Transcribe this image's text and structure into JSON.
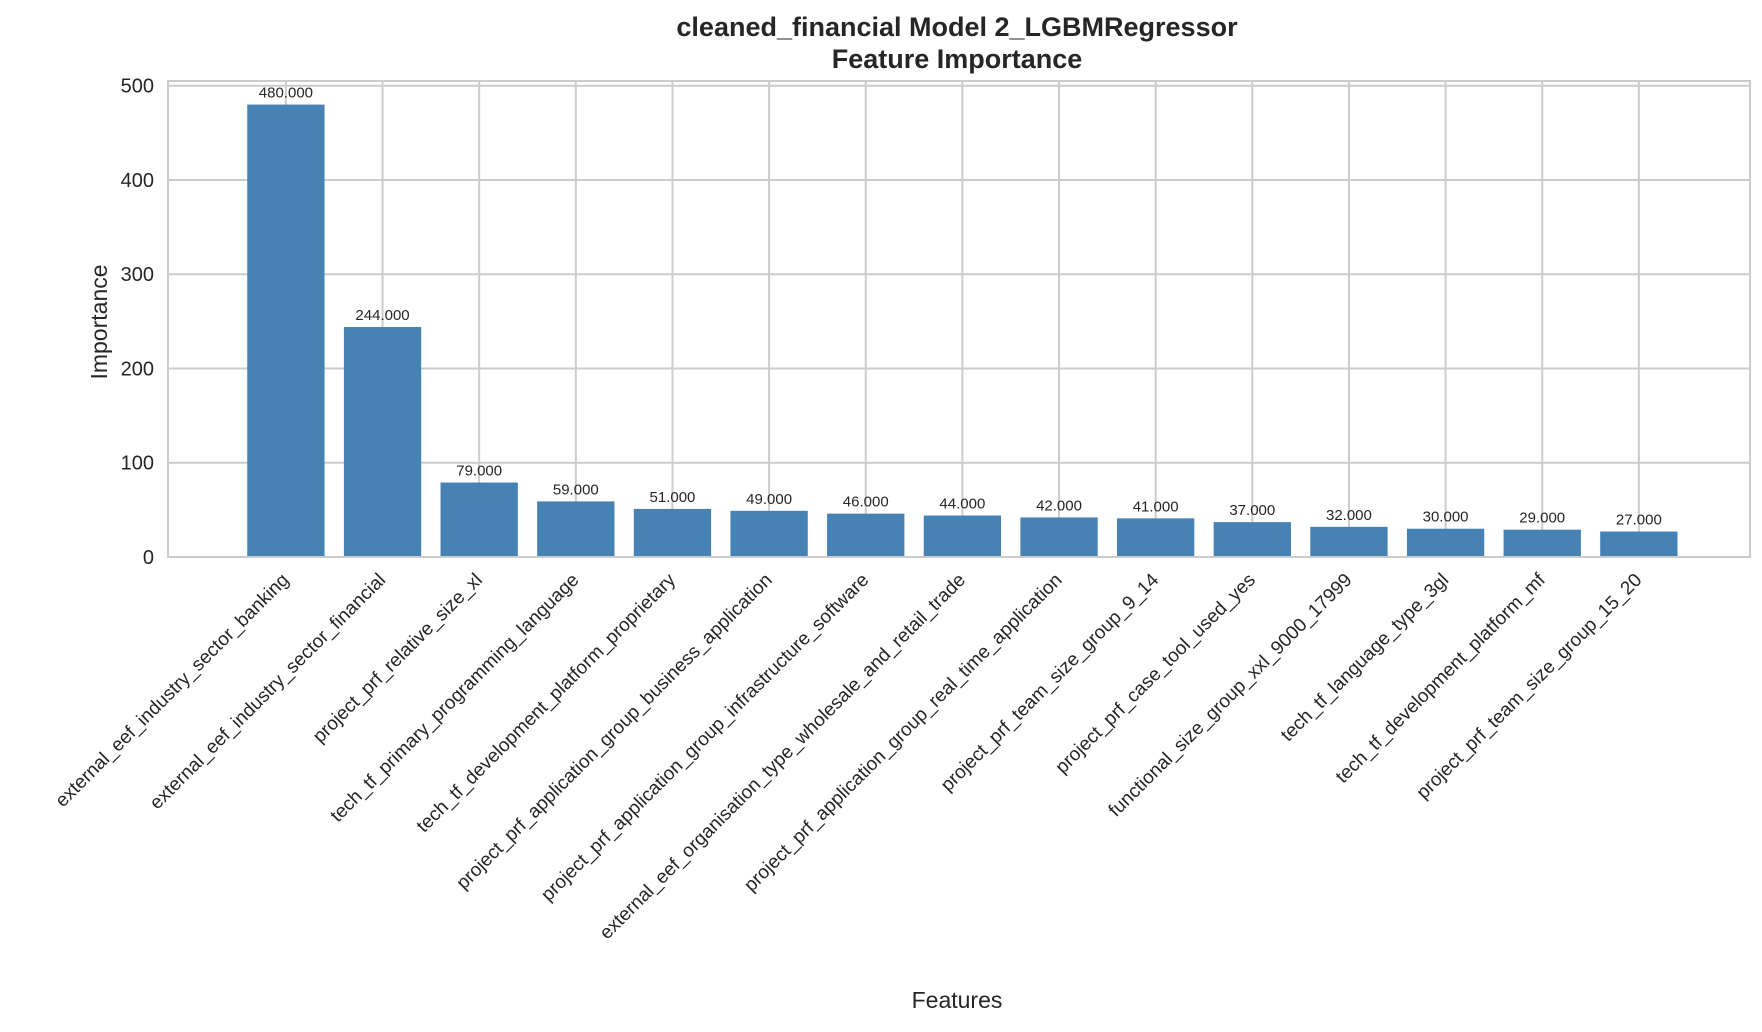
{
  "chart_data": {
    "type": "bar",
    "title": "cleaned_financial Model 2_LGBMRegressor",
    "subtitle": "Feature Importance",
    "xlabel": "Features",
    "ylabel": "Importance",
    "ylim": [
      0,
      505
    ],
    "yticks": [
      0,
      100,
      200,
      300,
      400,
      500
    ],
    "grid": true,
    "categories": [
      "external_eef_industry_sector_banking",
      "external_eef_industry_sector_financial",
      "project_prf_relative_size_xl",
      "tech_tf_primary_programming_language",
      "tech_tf_development_platform_proprietary",
      "project_prf_application_group_business_application",
      "project_prf_application_group_infrastructure_software",
      "external_eef_organisation_type_wholesale_and_retail_trade",
      "project_prf_application_group_real_time_application",
      "project_prf_team_size_group_9_14",
      "project_prf_case_tool_used_yes",
      "functional_size_group_xxl_9000_17999",
      "tech_tf_language_type_3gl",
      "tech_tf_development_platform_mf",
      "project_prf_team_size_group_15_20"
    ],
    "values": [
      480,
      244,
      79,
      59,
      51,
      49,
      46,
      44,
      42,
      41,
      37,
      32,
      30,
      29,
      27
    ],
    "value_labels": [
      "480.000",
      "244.000",
      "79.000",
      "59.000",
      "51.000",
      "49.000",
      "46.000",
      "44.000",
      "42.000",
      "41.000",
      "37.000",
      "32.000",
      "30.000",
      "29.000",
      "27.000"
    ],
    "bar_color": "#4682b4",
    "grid_color": "#cccccc",
    "text_color": "#262626"
  }
}
